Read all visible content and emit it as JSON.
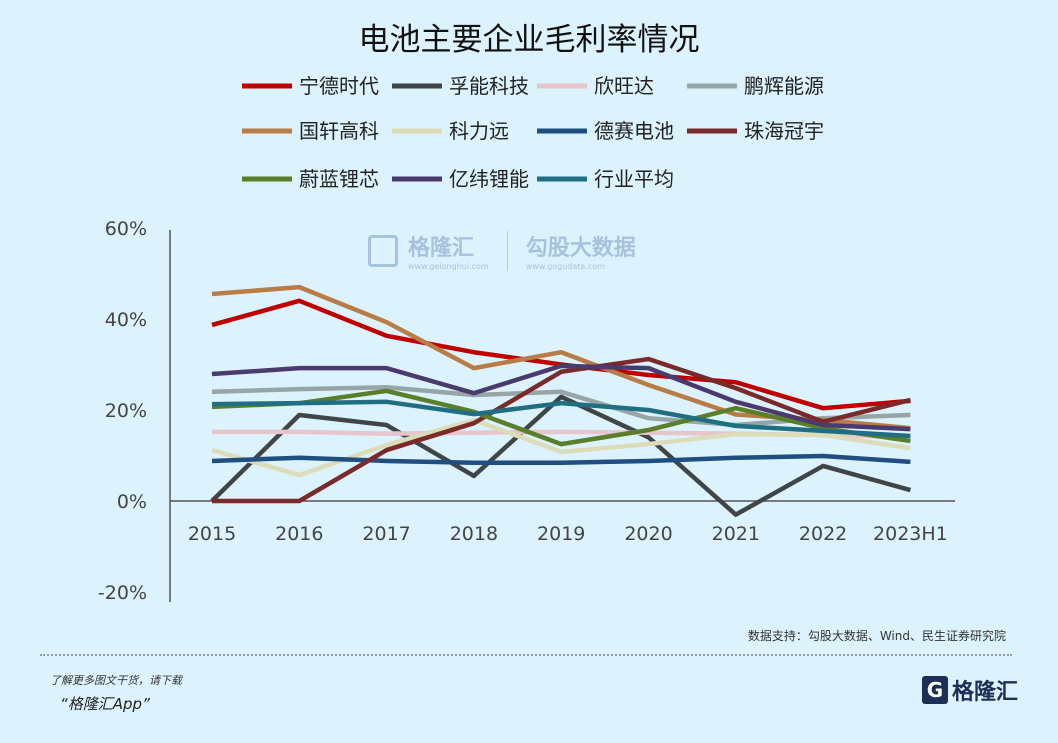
{
  "title": "电池主要企业毛利率情况",
  "source": "数据支持：勾股大数据、Wind、民生证券研究院",
  "footer": {
    "promo_line1": "了解更多图文干货，请下载",
    "promo_line2": "“格隆汇App”",
    "logo_text": "格隆汇"
  },
  "watermark": {
    "brand1": "格隆汇",
    "brand1_url": "www.gelonghui.com",
    "brand2": "勾股大数据",
    "brand2_url": "www.gogudata.com"
  },
  "chart_data": {
    "type": "line",
    "title": "电池主要企业毛利率情况",
    "categories": [
      "2015",
      "2016",
      "2017",
      "2018",
      "2019",
      "2020",
      "2021",
      "2022",
      "2023H1"
    ],
    "ylim": [
      -20,
      60
    ],
    "yticks": [
      "60%",
      "40%",
      "20%",
      "0%",
      "-20%"
    ],
    "ytick_values": [
      60,
      40,
      20,
      0,
      -20
    ],
    "grid": false,
    "legend_position": "top",
    "series": [
      {
        "name": "宁德时代",
        "color": "#c00000",
        "values": [
          38.7,
          44,
          36.3,
          32.7,
          30,
          27.7,
          26.1,
          20.4,
          22
        ]
      },
      {
        "name": "孚能科技",
        "color": "#404548",
        "values": [
          0,
          18.9,
          16.7,
          5.5,
          22.9,
          14,
          -3,
          7.7,
          2.4
        ]
      },
      {
        "name": "欣旺达",
        "color": "#e6c5cc",
        "values": [
          15.2,
          15.2,
          14.8,
          15,
          15.2,
          15,
          14.8,
          14.5,
          14
        ]
      },
      {
        "name": "鹏辉能源",
        "color": "#98a5a8",
        "values": [
          24,
          24.6,
          25,
          23.3,
          24,
          18.2,
          16.7,
          18.2,
          18.9
        ]
      },
      {
        "name": "国轩高科",
        "color": "#b87d46",
        "values": [
          45.5,
          47,
          39.3,
          29.2,
          32.7,
          25.5,
          19,
          17.8,
          16
        ]
      },
      {
        "name": "科力远",
        "color": "#dcdcb8",
        "values": [
          11.2,
          5.7,
          12.3,
          17.8,
          10.8,
          12.5,
          14.7,
          14.5,
          11.6
        ]
      },
      {
        "name": "德赛电池",
        "color": "#1f4e80",
        "values": [
          8.8,
          9.5,
          8.8,
          8.4,
          8.4,
          8.8,
          9.5,
          9.9,
          8.6
        ]
      },
      {
        "name": "珠海冠宇",
        "color": "#7a2a2a",
        "values": [
          0,
          0,
          11.2,
          17.1,
          28.4,
          31.2,
          24.8,
          17.4,
          22.2
        ]
      },
      {
        "name": "蔚蓝锂芯",
        "color": "#5a7e2a",
        "values": [
          20.7,
          21.5,
          24.2,
          19.6,
          12.5,
          15.6,
          20.4,
          16,
          13.2
        ]
      },
      {
        "name": "亿纬锂能",
        "color": "#4b3a6e",
        "values": [
          27.9,
          29.2,
          29.2,
          23.7,
          29.7,
          29.2,
          21.8,
          16.7,
          15.8
        ]
      },
      {
        "name": "行业平均",
        "color": "#1f6e82",
        "values": [
          21.3,
          21.5,
          21.8,
          19.1,
          21.5,
          20,
          16.5,
          15.4,
          14.3
        ]
      }
    ]
  }
}
